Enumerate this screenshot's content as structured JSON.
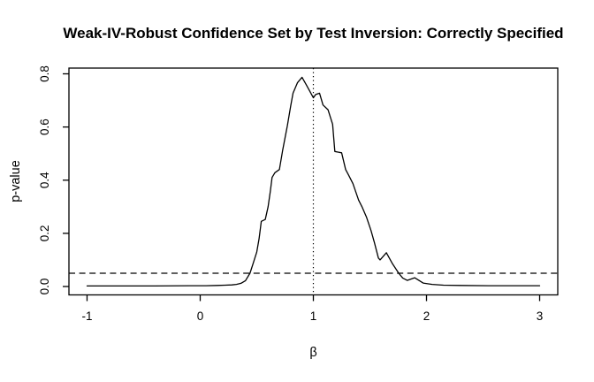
{
  "title": "Weak-IV-Robust Confidence Set by Test Inversion: Correctly Specified",
  "colors": {
    "foreground": "#000000",
    "background": "#ffffff"
  },
  "chart_data": {
    "type": "line",
    "title": "Weak-IV-Robust Confidence Set by Test Inversion: Correctly Specified",
    "xlabel": "β",
    "ylabel": "p-value",
    "xlim": [
      -1.16,
      3.16
    ],
    "ylim": [
      -0.0316,
      0.8216
    ],
    "grid": false,
    "legend": "none",
    "x_ticks": {
      "values": [
        -1,
        0,
        1,
        2,
        3
      ],
      "labels": [
        "-1",
        "0",
        "1",
        "2",
        "3"
      ]
    },
    "y_ticks": {
      "values": [
        0.0,
        0.2,
        0.4,
        0.6,
        0.8
      ],
      "labels": [
        "0.0",
        "0.2",
        "0.4",
        "0.6",
        "0.8"
      ]
    },
    "reference_lines": [
      {
        "orientation": "horizontal",
        "value": 0.05,
        "style": "dashed"
      },
      {
        "orientation": "vertical",
        "value": 1.0,
        "style": "dotted"
      }
    ],
    "series": [
      {
        "name": "p-value curve",
        "style": "solid",
        "x": [
          -1.0,
          -0.7,
          -0.4,
          -0.1,
          0.05,
          0.15,
          0.22,
          0.28,
          0.32,
          0.36,
          0.4,
          0.44,
          0.47,
          0.5,
          0.52,
          0.54,
          0.575,
          0.6,
          0.62,
          0.635,
          0.66,
          0.7,
          0.73,
          0.77,
          0.8,
          0.82,
          0.86,
          0.9,
          0.94,
          0.97,
          1.0,
          1.02,
          1.055,
          1.085,
          1.13,
          1.17,
          1.19,
          1.25,
          1.285,
          1.31,
          1.35,
          1.4,
          1.43,
          1.47,
          1.51,
          1.54,
          1.575,
          1.59,
          1.645,
          1.7,
          1.755,
          1.79,
          1.83,
          1.895,
          1.97,
          2.05,
          2.15,
          2.3,
          2.55,
          2.8,
          3.0
        ],
        "y": [
          0.002,
          0.002,
          0.002,
          0.003,
          0.003,
          0.004,
          0.005,
          0.006,
          0.008,
          0.012,
          0.022,
          0.05,
          0.09,
          0.13,
          0.18,
          0.245,
          0.252,
          0.3,
          0.36,
          0.41,
          0.428,
          0.44,
          0.515,
          0.605,
          0.68,
          0.727,
          0.767,
          0.787,
          0.757,
          0.733,
          0.71,
          0.722,
          0.727,
          0.683,
          0.665,
          0.61,
          0.508,
          0.503,
          0.44,
          0.42,
          0.387,
          0.325,
          0.3,
          0.26,
          0.21,
          0.165,
          0.107,
          0.1,
          0.127,
          0.085,
          0.05,
          0.032,
          0.023,
          0.033,
          0.013,
          0.008,
          0.005,
          0.004,
          0.003,
          0.003,
          0.003
        ]
      }
    ]
  }
}
